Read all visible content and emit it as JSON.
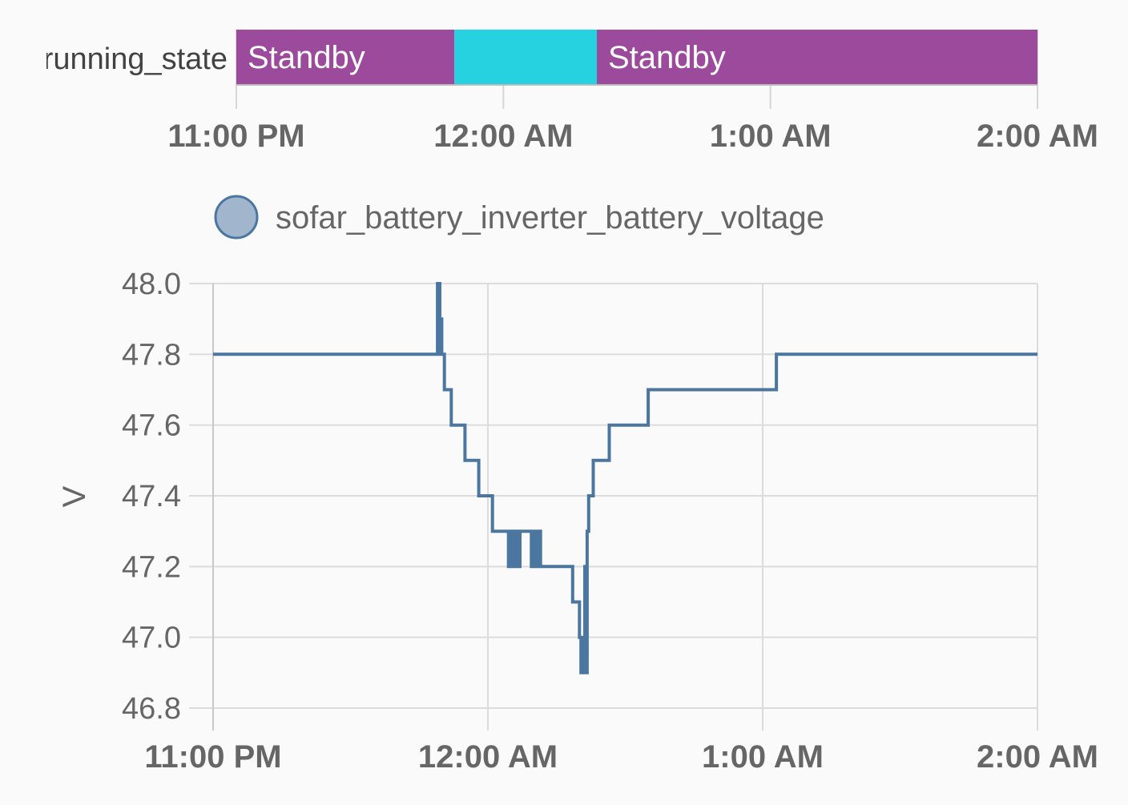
{
  "chart_data": [
    {
      "type": "timeline",
      "entity_label": "running_state",
      "segments": [
        {
          "label": "Standby",
          "start": "22:59:00",
          "end": "23:49:00",
          "color": "#9c4a9c"
        },
        {
          "label": "",
          "start": "23:49:00",
          "end": "00:21:00",
          "color": "#26d1e0"
        },
        {
          "label": "Standby",
          "start": "00:21:00",
          "end": "02:00:00",
          "color": "#9c4a9c"
        }
      ],
      "x_ticks": [
        "11:00 PM",
        "12:00 AM",
        "1:00 AM",
        "2:00 AM"
      ]
    },
    {
      "type": "line",
      "step": true,
      "legend": [
        {
          "name": "sofar_battery_inverter_battery_voltage",
          "color": "#4a76a0"
        }
      ],
      "ylabel": "V",
      "ylim": [
        46.8,
        48.0
      ],
      "y_ticks": [
        "48.0",
        "47.8",
        "47.6",
        "47.4",
        "47.2",
        "47.0",
        "46.8"
      ],
      "x_ticks": [
        "11:00 PM",
        "12:00 AM",
        "1:00 AM",
        "2:00 AM"
      ],
      "grid": true,
      "series": [
        {
          "name": "sofar_battery_inverter_battery_voltage",
          "color": "#4a76a0",
          "points": [
            [
              "23:00:00",
              47.8
            ],
            [
              "23:49:00",
              48.0
            ],
            [
              "23:49:30",
              47.8
            ],
            [
              "23:49:45",
              47.9
            ],
            [
              "23:49:55",
              47.8
            ],
            [
              "23:50:30",
              47.7
            ],
            [
              "23:52:00",
              47.6
            ],
            [
              "23:55:00",
              47.5
            ],
            [
              "23:58:00",
              47.4
            ],
            [
              "00:01:00",
              47.3
            ],
            [
              "00:04:30",
              47.2
            ],
            [
              "00:04:50",
              47.3
            ],
            [
              "00:05:10",
              47.2
            ],
            [
              "00:05:30",
              47.3
            ],
            [
              "00:05:50",
              47.2
            ],
            [
              "00:06:10",
              47.3
            ],
            [
              "00:06:30",
              47.2
            ],
            [
              "00:07:00",
              47.3
            ],
            [
              "00:09:30",
              47.2
            ],
            [
              "00:09:50",
              47.3
            ],
            [
              "00:10:10",
              47.2
            ],
            [
              "00:10:30",
              47.3
            ],
            [
              "00:10:50",
              47.2
            ],
            [
              "00:11:10",
              47.3
            ],
            [
              "00:11:30",
              47.2
            ],
            [
              "00:18:30",
              47.1
            ],
            [
              "00:20:00",
              47.0
            ],
            [
              "00:20:20",
              46.9
            ],
            [
              "00:20:40",
              47.0
            ],
            [
              "00:20:50",
              46.9
            ],
            [
              "00:21:10",
              47.2
            ],
            [
              "00:21:20",
              46.9
            ],
            [
              "00:21:40",
              47.3
            ],
            [
              "00:22:00",
              47.4
            ],
            [
              "00:23:00",
              47.5
            ],
            [
              "00:26:30",
              47.6
            ],
            [
              "00:35:00",
              47.7
            ],
            [
              "01:03:00",
              47.8
            ],
            [
              "02:00:00",
              47.8
            ]
          ]
        }
      ]
    }
  ]
}
